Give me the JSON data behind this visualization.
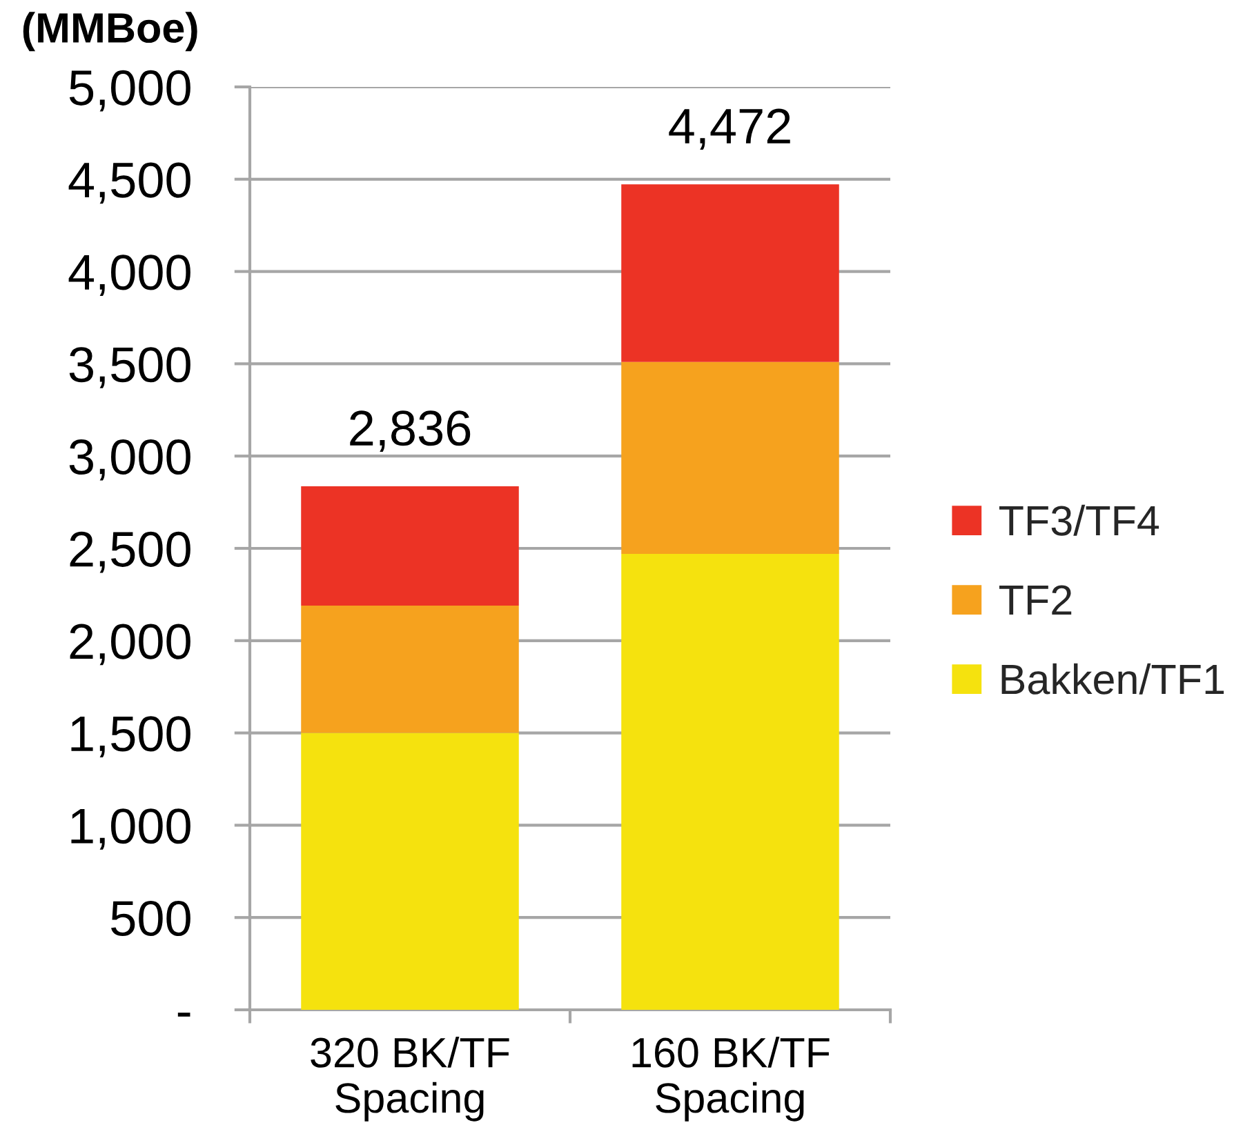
{
  "chart_data": {
    "type": "bar",
    "stacked": true,
    "ylabel": "(MMBoe)",
    "categories": [
      "320 BK/TF\nSpacing",
      "160 BK/TF\nSpacing"
    ],
    "series": [
      {
        "name": "Bakken/TF1",
        "color": "#f5e20e",
        "values": [
          1500,
          2470
        ]
      },
      {
        "name": "TF2",
        "color": "#f6a21e",
        "values": [
          690,
          1040
        ]
      },
      {
        "name": "TF3/TF4",
        "color": "#ec3325",
        "values": [
          646,
          962
        ]
      }
    ],
    "totals": [
      "2,836",
      "4,472"
    ],
    "ylim": [
      0,
      5000
    ],
    "yticks": [
      {
        "value": 0,
        "label": "-"
      },
      500,
      {
        "value": 1000,
        "label": "1,000"
      },
      {
        "value": 1500,
        "label": "1,500"
      },
      {
        "value": 2000,
        "label": "2,000"
      },
      {
        "value": 2500,
        "label": "2,500"
      },
      {
        "value": 3000,
        "label": "3,000"
      },
      {
        "value": 3500,
        "label": "3,500"
      },
      {
        "value": 4000,
        "label": "4,000"
      },
      {
        "value": 4500,
        "label": "4,500"
      },
      {
        "value": 5000,
        "label": "5,000"
      }
    ],
    "grid": "y",
    "legend": "right"
  }
}
